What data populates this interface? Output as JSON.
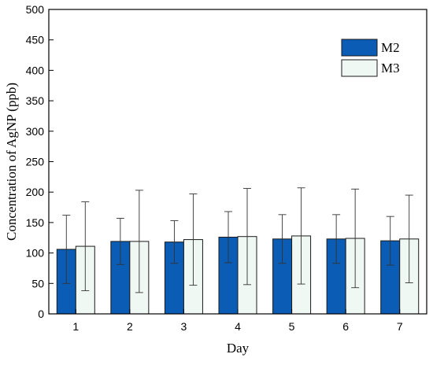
{
  "chart_data": {
    "type": "bar",
    "title": "",
    "xlabel": "Day",
    "ylabel": "Concentration of AgNP (ppb)",
    "categories": [
      "1",
      "2",
      "3",
      "4",
      "5",
      "6",
      "7"
    ],
    "ylim": [
      0,
      500
    ],
    "yticks": [
      0,
      50,
      100,
      150,
      200,
      250,
      300,
      350,
      400,
      450,
      500
    ],
    "grid": false,
    "legend_position": "top-right",
    "error_bars": true,
    "series": [
      {
        "name": "M2",
        "color": "#0a5cb4",
        "values": [
          106,
          119,
          118,
          126,
          123,
          123,
          120
        ],
        "errors": [
          56,
          38,
          35,
          42,
          40,
          40,
          40
        ]
      },
      {
        "name": "M3",
        "color": "#f0f8f4",
        "values": [
          111,
          119,
          122,
          127,
          128,
          124,
          123
        ],
        "errors": [
          73,
          84,
          75,
          79,
          79,
          81,
          72
        ]
      }
    ]
  }
}
